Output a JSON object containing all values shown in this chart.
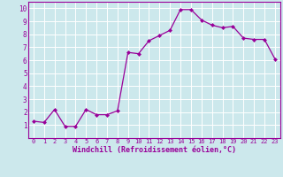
{
  "x": [
    0,
    1,
    2,
    3,
    4,
    5,
    6,
    7,
    8,
    9,
    10,
    11,
    12,
    13,
    14,
    15,
    16,
    17,
    18,
    19,
    20,
    21,
    22,
    23
  ],
  "y": [
    1.3,
    1.2,
    2.2,
    0.9,
    0.9,
    2.2,
    1.8,
    1.8,
    2.1,
    6.6,
    6.5,
    7.5,
    7.9,
    8.3,
    9.9,
    9.9,
    9.1,
    8.7,
    8.5,
    8.6,
    7.7,
    7.6,
    7.6,
    6.1
  ],
  "line_color": "#990099",
  "marker": "D",
  "marker_size": 2.5,
  "bg_color": "#cce8ec",
  "grid_color": "#ffffff",
  "xlabel": "Windchill (Refroidissement éolien,°C)",
  "xlabel_color": "#990099",
  "tick_color": "#990099",
  "xlim": [
    -0.5,
    23.5
  ],
  "ylim": [
    0,
    10.5
  ],
  "yticks": [
    1,
    2,
    3,
    4,
    5,
    6,
    7,
    8,
    9,
    10
  ],
  "xticks": [
    0,
    1,
    2,
    3,
    4,
    5,
    6,
    7,
    8,
    9,
    10,
    11,
    12,
    13,
    14,
    15,
    16,
    17,
    18,
    19,
    20,
    21,
    22,
    23
  ],
  "spine_color": "#990099"
}
